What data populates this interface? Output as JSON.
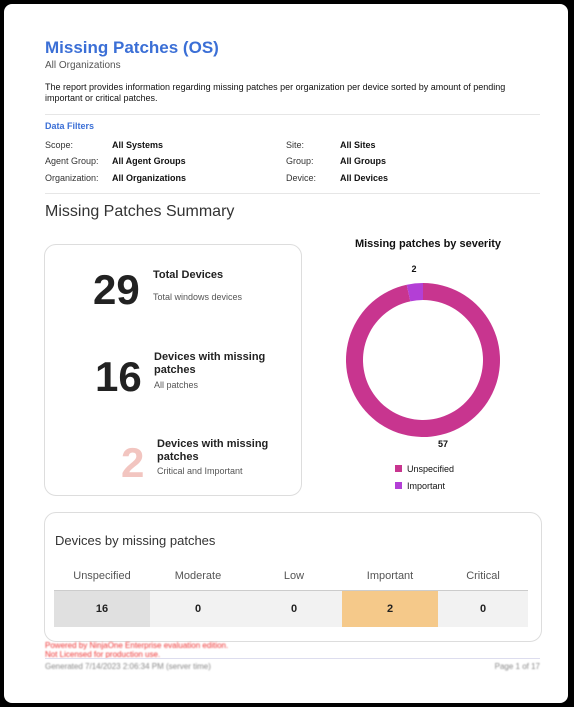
{
  "header": {
    "title": "Missing Patches (OS)",
    "subtitle": "All Organizations",
    "description": "The report provides information regarding missing patches per organization per device sorted by amount of pending important or critical patches."
  },
  "filters": {
    "title": "Data Filters",
    "items": [
      {
        "label": "Scope:",
        "value": "All Systems"
      },
      {
        "label": "Site:",
        "value": "All Sites"
      },
      {
        "label": "Agent Group:",
        "value": "All Agent Groups"
      },
      {
        "label": "Group:",
        "value": "All Groups"
      },
      {
        "label": "Organization:",
        "value": "All Organizations"
      },
      {
        "label": "Device:",
        "value": "All Devices"
      }
    ]
  },
  "summary": {
    "title": "Missing Patches Summary",
    "kpis": [
      {
        "value": "29",
        "label": "Total Devices",
        "note": "Total windows devices"
      },
      {
        "value": "16",
        "label": "Devices with missing patches",
        "note": "All patches"
      },
      {
        "value": "2",
        "label": "Devices with missing patches",
        "note": "Critical and Important"
      }
    ]
  },
  "severity_chart": {
    "type": "donut",
    "title": "Missing patches by severity",
    "categories": [
      "Unspecified",
      "Important"
    ],
    "values": [
      57,
      2
    ],
    "colors": [
      "#c8358f",
      "#b33fd6"
    ]
  },
  "devices_table": {
    "title": "Devices by missing patches",
    "headers": [
      "Unspecified",
      "Moderate",
      "Low",
      "Important",
      "Critical"
    ],
    "values": [
      "16",
      "0",
      "0",
      "2",
      "0"
    ]
  },
  "footer": {
    "notice": [
      "Powered by NinjaOne Enterprise evaluation edition.",
      "Not Licensed for production use."
    ],
    "generated": "Generated 7/14/2023 2:06:34 PM (server time)",
    "page": "Page 1 of 17"
  }
}
